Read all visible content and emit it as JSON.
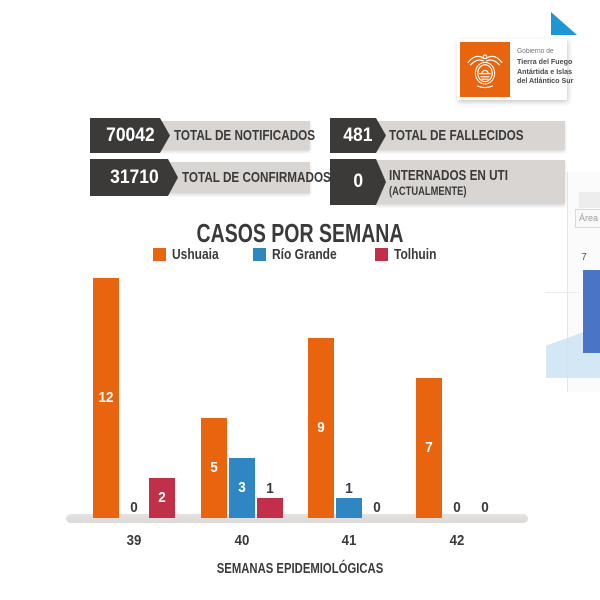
{
  "logo": {
    "line1": "Gobierno de",
    "line2": "Tierra del Fuego",
    "line3": "Antártida e Islas",
    "line4": "del Atlántico Sur"
  },
  "stats": {
    "notificados": {
      "value": "70042",
      "label": "TOTAL DE NOTIFICADOS"
    },
    "fallecidos": {
      "value": "481",
      "label": "TOTAL DE FALLECIDOS"
    },
    "confirmados": {
      "value": "31710",
      "label": "TOTAL DE CONFIRMADOS"
    },
    "uti": {
      "value": "0",
      "label": "INTERNADOS EN UTI",
      "sublabel": "(ACTUALMENTE)"
    }
  },
  "chart_data": {
    "type": "bar",
    "title": "CASOS POR SEMANA",
    "categories": [
      "39",
      "40",
      "41",
      "42"
    ],
    "series": [
      {
        "name": "Ushuaia",
        "color": "#E8640F",
        "values": [
          12,
          5,
          9,
          7
        ]
      },
      {
        "name": "Río Grande",
        "color": "#2E87C2",
        "values": [
          0,
          3,
          1,
          0
        ]
      },
      {
        "name": "Tolhuin",
        "color": "#C22F49",
        "values": [
          2,
          1,
          0,
          0
        ]
      }
    ],
    "xlabel": "SEMANAS EPIDEMIOLÓGICAS",
    "ylim": [
      0,
      12
    ],
    "grid": false,
    "legend_position": "top",
    "value_labels": "shown on every bar (white inside tall bars, dark above small/zero bars)"
  },
  "side_panel": {
    "area_label": "Área",
    "value": "7"
  },
  "colors": {
    "accent_orange": "#E8640F",
    "dark": "#3B3A39",
    "label_bg": "#D8D5D2",
    "axis_strip": "#DEDDDB",
    "corner_triangle": "#1D96D3",
    "panel_bar_blue": "#4A75C7",
    "panel_area_fill": "#CBE3F2"
  }
}
